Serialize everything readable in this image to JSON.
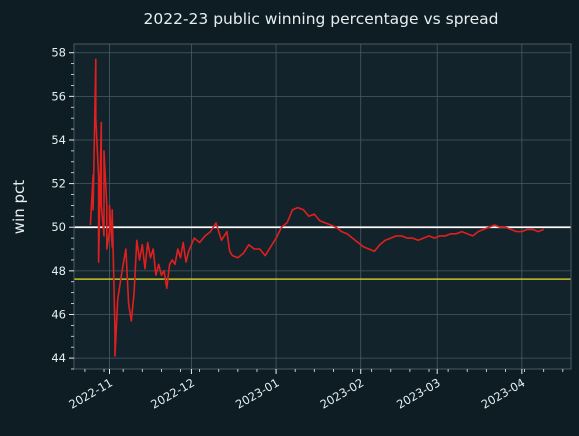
{
  "colors": {
    "page_bg": "#0e1d23",
    "plot_bg": "#13232b",
    "grid": "#4a5a62",
    "text": "#e6eef2",
    "series": "#e01f1f",
    "ref_50": "#ffffff",
    "ref_break_even": "#c7c228"
  },
  "chart_data": {
    "type": "line",
    "title": "2022-23 public winning percentage vs spread",
    "xlabel": "",
    "ylabel": "win pct",
    "x_tick_labels": [
      "2022-11",
      "2022-12",
      "2023-01",
      "2023-02",
      "2023-03",
      "2023-04"
    ],
    "x_ticks": [
      "2022-11-01",
      "2022-12-01",
      "2023-01-01",
      "2023-02-01",
      "2023-03-01",
      "2023-04-01"
    ],
    "xlim": [
      "2022-10-19",
      "2023-04-19"
    ],
    "y_tick_labels": [
      "44",
      "46",
      "48",
      "50",
      "52",
      "54",
      "56",
      "58"
    ],
    "y_ticks": [
      44,
      46,
      48,
      50,
      52,
      54,
      56,
      58
    ],
    "ylim": [
      43.5,
      58.4
    ],
    "grid": true,
    "reference_lines": [
      {
        "y": 50.0
      },
      {
        "y": 47.62
      }
    ],
    "series": [
      {
        "x": [
          "2022-10-25",
          "2022-10-26",
          "2022-10-26",
          "2022-10-27",
          "2022-10-27",
          "2022-10-28",
          "2022-10-28",
          "2022-10-29",
          "2022-10-29",
          "2022-10-30",
          "2022-10-30",
          "2022-10-31",
          "2022-10-31",
          "2022-11-01",
          "2022-11-01",
          "2022-11-02",
          "2022-11-02",
          "2022-11-03",
          "2022-11-03",
          "2022-11-04",
          "2022-11-05",
          "2022-11-06",
          "2022-11-07",
          "2022-11-08",
          "2022-11-09",
          "2022-11-10",
          "2022-11-11",
          "2022-11-12",
          "2022-11-13",
          "2022-11-14",
          "2022-11-15",
          "2022-11-16",
          "2022-11-17",
          "2022-11-18",
          "2022-11-19",
          "2022-11-20",
          "2022-11-21",
          "2022-11-22",
          "2022-11-23",
          "2022-11-24",
          "2022-11-25",
          "2022-11-26",
          "2022-11-27",
          "2022-11-28",
          "2022-11-29",
          "2022-11-30",
          "2022-12-02",
          "2022-12-04",
          "2022-12-06",
          "2022-12-08",
          "2022-12-10",
          "2022-12-12",
          "2022-12-14",
          "2022-12-15",
          "2022-12-16",
          "2022-12-18",
          "2022-12-20",
          "2022-12-22",
          "2022-12-24",
          "2022-12-26",
          "2022-12-28",
          "2022-12-30",
          "2023-01-01",
          "2023-01-03",
          "2023-01-05",
          "2023-01-07",
          "2023-01-09",
          "2023-01-11",
          "2023-01-13",
          "2023-01-15",
          "2023-01-17",
          "2023-01-19",
          "2023-01-21",
          "2023-01-23",
          "2023-01-25",
          "2023-01-27",
          "2023-01-29",
          "2023-01-31",
          "2023-02-02",
          "2023-02-04",
          "2023-02-06",
          "2023-02-08",
          "2023-02-10",
          "2023-02-12",
          "2023-02-14",
          "2023-02-16",
          "2023-02-18",
          "2023-02-20",
          "2023-02-22",
          "2023-02-24",
          "2023-02-26",
          "2023-02-28",
          "2023-03-02",
          "2023-03-04",
          "2023-03-06",
          "2023-03-08",
          "2023-03-10",
          "2023-03-12",
          "2023-03-14",
          "2023-03-16",
          "2023-03-18",
          "2023-03-20",
          "2023-03-22",
          "2023-03-24",
          "2023-03-26",
          "2023-03-28",
          "2023-03-30",
          "2023-04-01",
          "2023-04-03",
          "2023-04-05",
          "2023-04-07",
          "2023-04-09"
        ],
        "y": [
          50.1,
          52.4,
          50.8,
          57.7,
          55.0,
          52.3,
          48.4,
          54.8,
          51.0,
          49.6,
          53.5,
          51.0,
          49.0,
          49.8,
          51.0,
          49.1,
          50.8,
          45.2,
          44.1,
          46.7,
          47.5,
          48.3,
          49.0,
          46.5,
          45.7,
          47.0,
          49.4,
          48.5,
          49.2,
          48.1,
          49.3,
          48.6,
          49.0,
          47.8,
          48.3,
          47.8,
          48.0,
          47.2,
          48.3,
          48.5,
          48.3,
          49.0,
          48.6,
          49.3,
          48.4,
          48.9,
          49.5,
          49.3,
          49.6,
          49.8,
          50.2,
          49.4,
          49.8,
          48.9,
          48.7,
          48.6,
          48.8,
          49.2,
          49.0,
          49.0,
          48.7,
          49.1,
          49.5,
          50.0,
          50.2,
          50.8,
          50.9,
          50.8,
          50.5,
          50.6,
          50.3,
          50.2,
          50.1,
          50.0,
          49.8,
          49.7,
          49.5,
          49.3,
          49.1,
          49.0,
          48.9,
          49.2,
          49.4,
          49.5,
          49.6,
          49.6,
          49.5,
          49.5,
          49.4,
          49.5,
          49.6,
          49.5,
          49.6,
          49.6,
          49.7,
          49.7,
          49.8,
          49.7,
          49.6,
          49.8,
          49.9,
          50.0,
          50.1,
          50.0,
          50.0,
          49.9,
          49.8,
          49.8,
          49.9,
          49.9,
          49.8,
          49.9
        ]
      }
    ]
  }
}
